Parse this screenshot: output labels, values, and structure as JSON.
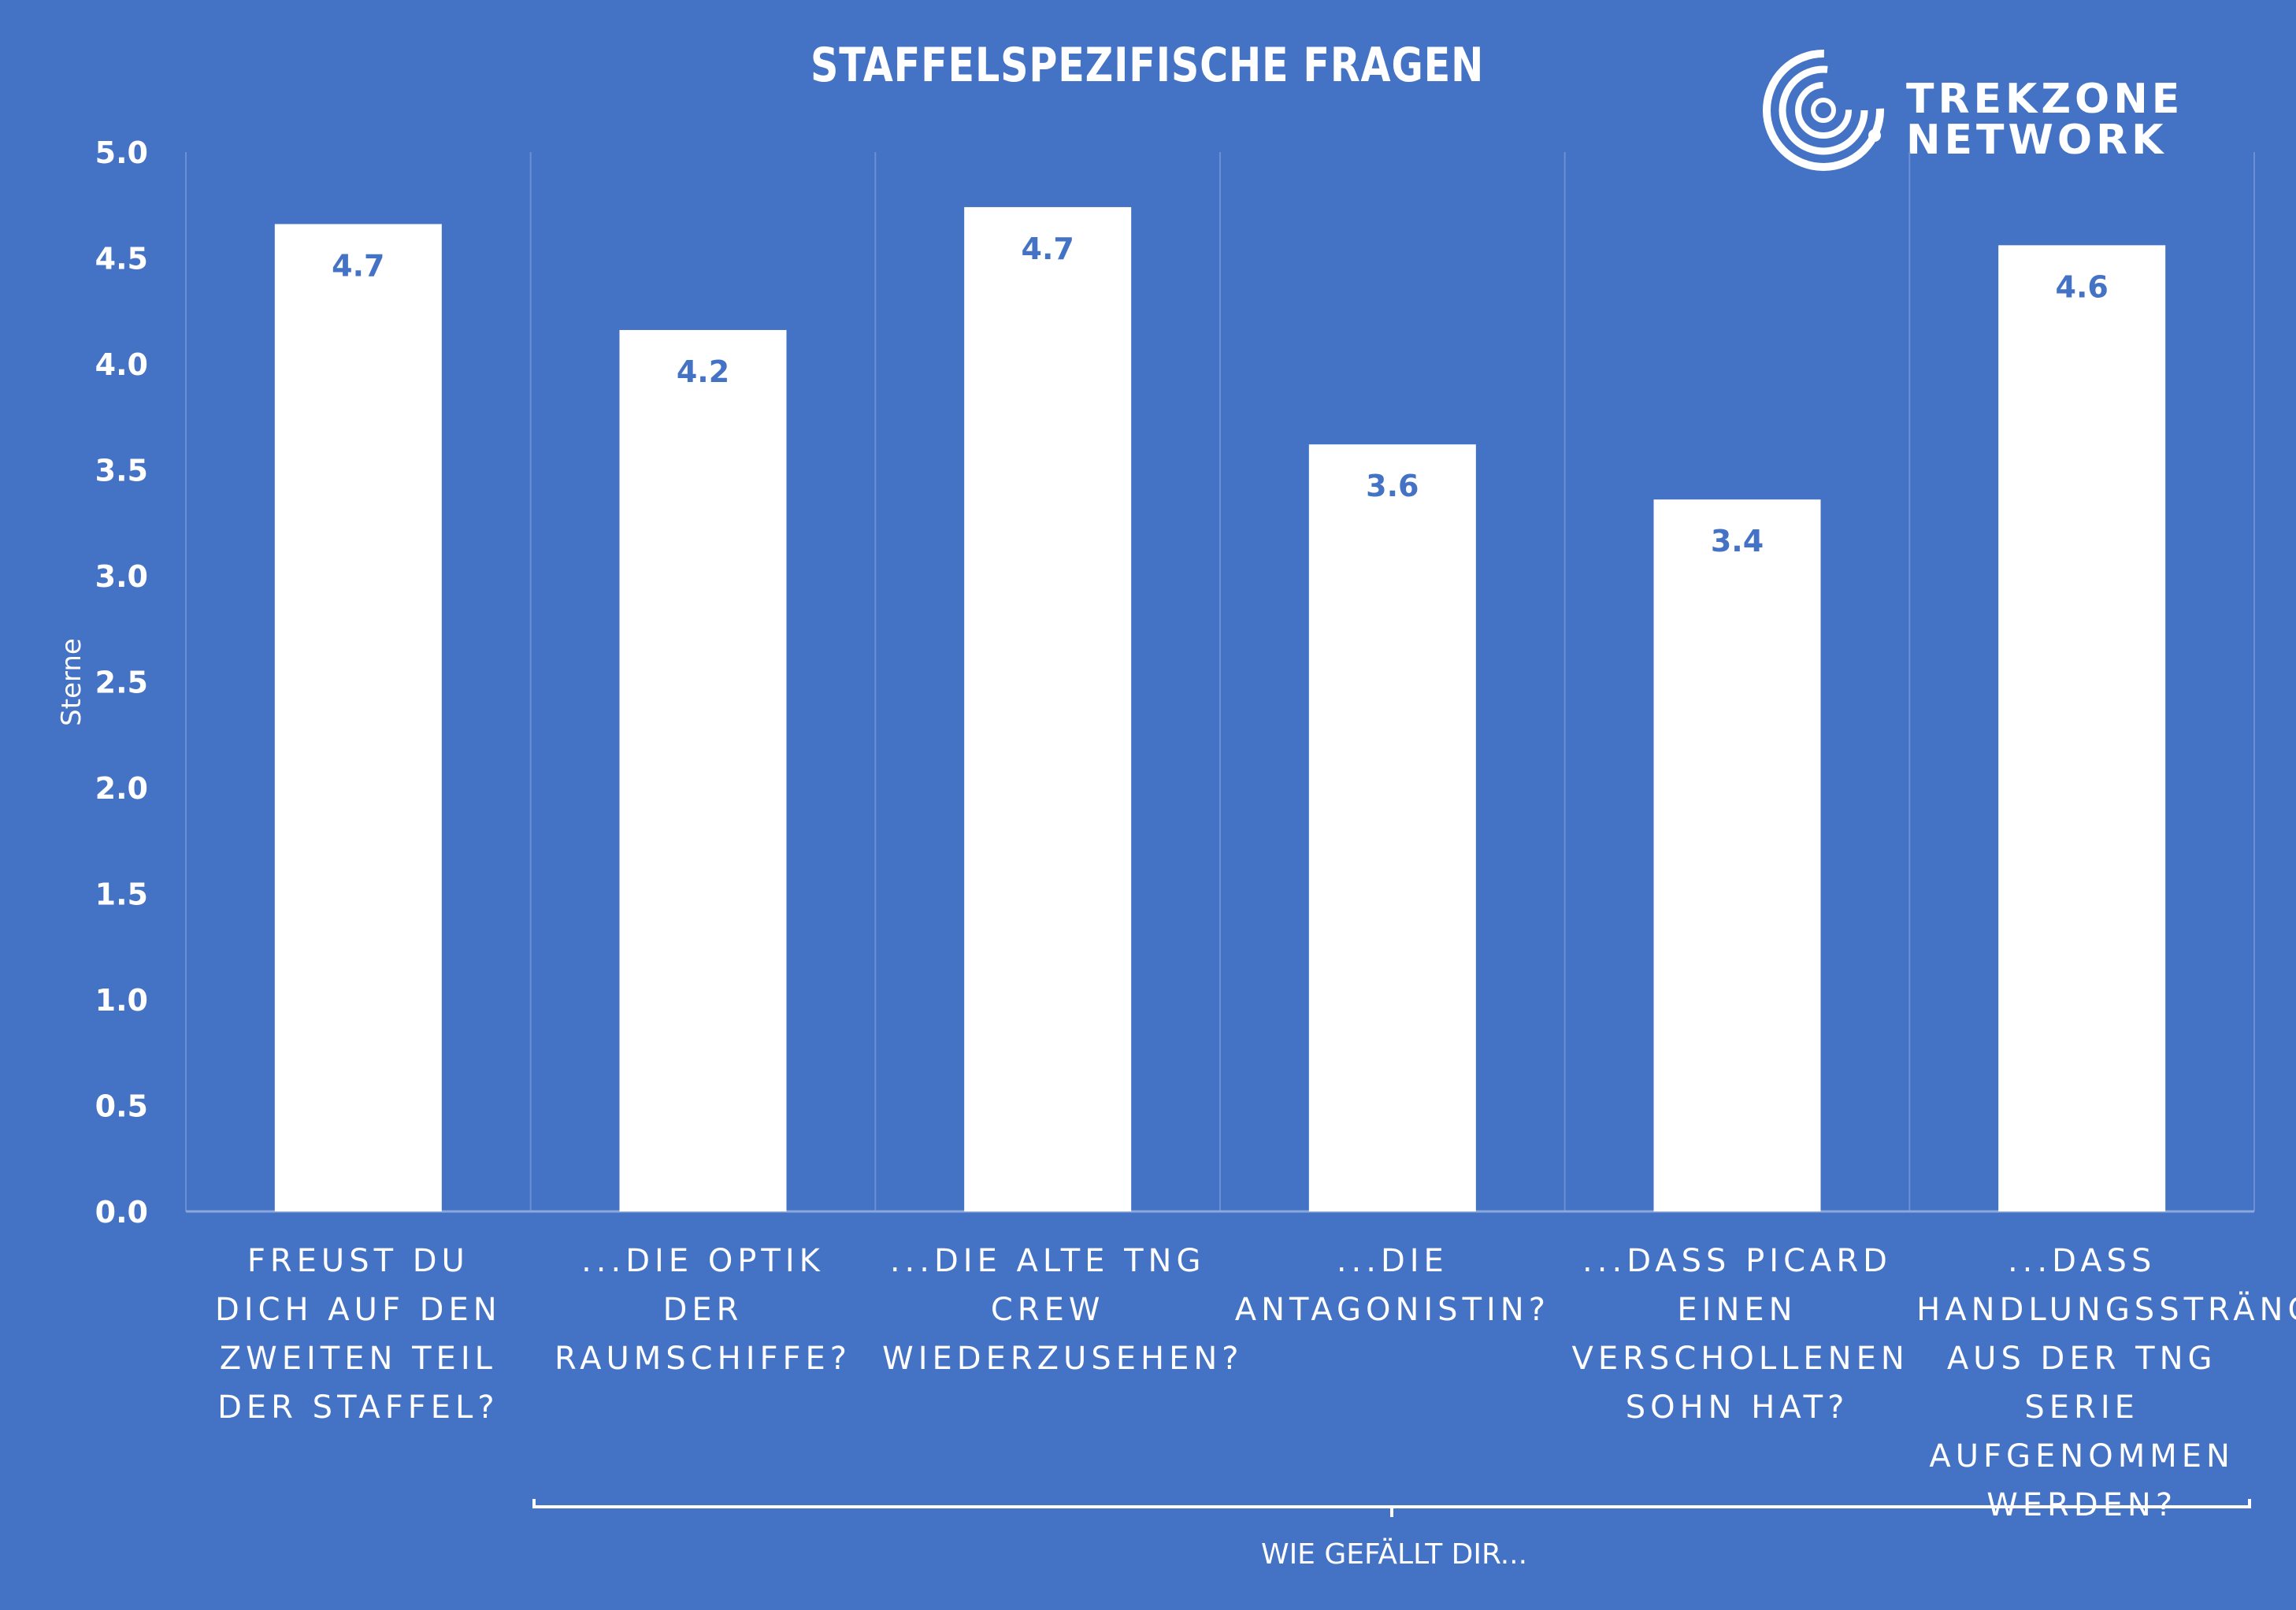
{
  "chart_data": {
    "type": "bar",
    "title": "STAFFELSPEZIFISCHE FRAGEN",
    "ylabel": "Sterne",
    "xlabel": "WIE GEFÄLLT DIR...",
    "ylim": [
      0,
      5
    ],
    "yticks": [
      "0.0",
      "0.5",
      "1.0",
      "1.5",
      "2.0",
      "2.5",
      "3.0",
      "3.5",
      "4.0",
      "4.5",
      "5.0"
    ],
    "categories": [
      "FREUST DU DICH AUF DEN ZWEITEN TEIL DER STAFFEL?",
      "...DIE OPTIK DER RAUMSCHIFFE?",
      "...DIE ALTE TNG CREW WIEDERZUSEHEN?",
      "...DIE ANTAGONISTIN?",
      "...DASS PICARD EINEN VERSCHOLLENEN SOHN HAT?",
      "...DASS HANDLUNGSSTRÄNGE AUS DER TNG SERIE AUFGENOMMEN WERDEN?"
    ],
    "values": [
      4.66,
      4.16,
      4.74,
      3.62,
      3.36,
      4.56
    ],
    "data_labels": [
      "4.7",
      "4.2",
      "4.7",
      "3.6",
      "3.4",
      "4.6"
    ],
    "bar_color": "#ffffff",
    "label_color": "#4472c4",
    "background": "#4472c4",
    "grid": "vertical separators"
  },
  "logo": {
    "line1": "TREKZONE",
    "line2": "NETWORK"
  }
}
